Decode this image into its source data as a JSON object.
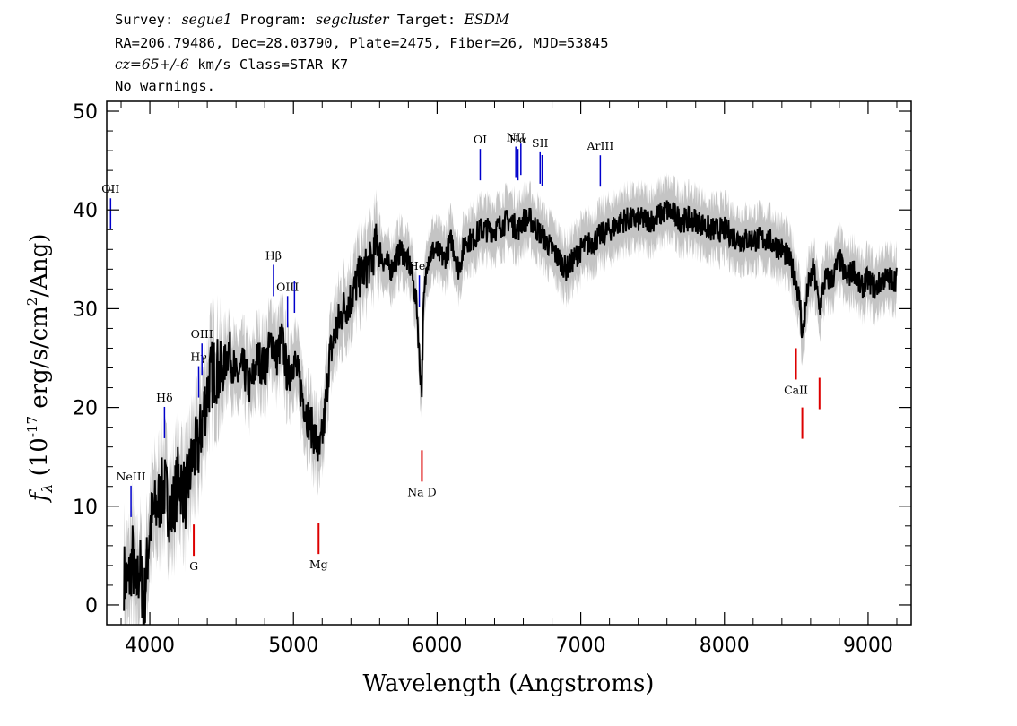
{
  "header": {
    "line1": {
      "survey_label": "Survey:",
      "survey": "segue1",
      "program_label": "Program:",
      "program": "segcluster",
      "target_label": "Target:",
      "target": "ESDM"
    },
    "line2": "RA=206.79486, Dec=28.03790, Plate=2475, Fiber=26, MJD=53845",
    "line3": {
      "cz": "cz=65+/-6",
      "rest": " km/s Class=STAR K7"
    },
    "line4": "No warnings."
  },
  "chart_data": {
    "type": "line",
    "xlabel": "Wavelength (Angstroms)",
    "ylabel": "f_λ (10^-17 erg/s/cm^2/Ang)",
    "xlim": [
      3700,
      9300
    ],
    "ylim": [
      -2,
      51
    ],
    "x_ticks": [
      4000,
      5000,
      6000,
      7000,
      8000,
      9000
    ],
    "y_ticks": [
      0,
      10,
      20,
      30,
      40,
      50
    ],
    "series": [
      {
        "role": "smoothed spectrum",
        "color": "#000000",
        "x": [
          3820,
          3850,
          3880,
          3900,
          3930,
          3960,
          4000,
          4050,
          4100,
          4150,
          4200,
          4250,
          4300,
          4340,
          4380,
          4420,
          4460,
          4500,
          4550,
          4600,
          4650,
          4700,
          4750,
          4800,
          4850,
          4880,
          4920,
          4960,
          5000,
          5050,
          5100,
          5150,
          5180,
          5210,
          5250,
          5300,
          5350,
          5400,
          5450,
          5500,
          5550,
          5580,
          5620,
          5680,
          5750,
          5820,
          5860,
          5880,
          5893,
          5905,
          5930,
          5980,
          6050,
          6100,
          6150,
          6200,
          6250,
          6300,
          6400,
          6500,
          6563,
          6600,
          6650,
          6700,
          6750,
          6800,
          6850,
          6900,
          7000,
          7100,
          7200,
          7300,
          7400,
          7500,
          7600,
          7700,
          7800,
          7900,
          8000,
          8100,
          8200,
          8300,
          8400,
          8450,
          8498,
          8530,
          8542,
          8580,
          8620,
          8662,
          8700,
          8750,
          8800,
          8850,
          8900,
          8950,
          9000,
          9050,
          9100,
          9150,
          9200
        ],
        "y": [
          3,
          2,
          5,
          1,
          4,
          0,
          8,
          10,
          12,
          9,
          13,
          11,
          15,
          16,
          20,
          23,
          24,
          23,
          26,
          23,
          24,
          22,
          25,
          24,
          27,
          25,
          27,
          23,
          25,
          22,
          19,
          17,
          15,
          18,
          25,
          28,
          30,
          31,
          33,
          34,
          35,
          37,
          35,
          34,
          36,
          34,
          30,
          24,
          22,
          30,
          35,
          36,
          35,
          37,
          34,
          37,
          37,
          38,
          38,
          39,
          38,
          39,
          39,
          38,
          37,
          36,
          35,
          34,
          36,
          37,
          38,
          39,
          39,
          39,
          40,
          39,
          39,
          38,
          38,
          37,
          37,
          37,
          36,
          35,
          33,
          30,
          27,
          32,
          34,
          30,
          33,
          33,
          35,
          33,
          34,
          32,
          33,
          32,
          33,
          33,
          33
        ]
      }
    ],
    "error_band_color": "#c4c4c4",
    "emission_lines": [
      {
        "label": "OII",
        "wavelength": 3727
      },
      {
        "label": "NeIII",
        "wavelength": 3869
      },
      {
        "label": "Hδ",
        "wavelength": 4102
      },
      {
        "label": "Hγ",
        "wavelength": 4340
      },
      {
        "label": "OIII",
        "wavelength": 4363
      },
      {
        "label": "Hβ",
        "wavelength": 4861
      },
      {
        "label": "OIII",
        "wavelength": 4959
      },
      {
        "label": "",
        "wavelength": 5007
      },
      {
        "label": "HeI",
        "wavelength": 5876
      },
      {
        "label": "OI",
        "wavelength": 6300
      },
      {
        "label": "NII",
        "wavelength": 6548
      },
      {
        "label": "Hα",
        "wavelength": 6563
      },
      {
        "label": "",
        "wavelength": 6583
      },
      {
        "label": "SII",
        "wavelength": 6717
      },
      {
        "label": "",
        "wavelength": 6731
      },
      {
        "label": "ArIII",
        "wavelength": 7136
      }
    ],
    "absorption_lines": [
      {
        "label": "G",
        "wavelength": 4306
      },
      {
        "label": "Mg",
        "wavelength": 5175
      },
      {
        "label": "Na D",
        "wavelength": 5894
      },
      {
        "label": "CaII",
        "wavelength": 8498
      },
      {
        "label": "",
        "wavelength": 8542
      },
      {
        "label": "",
        "wavelength": 8662
      }
    ],
    "emission_color": "#0000cc",
    "absorption_color": "#dd0000"
  }
}
